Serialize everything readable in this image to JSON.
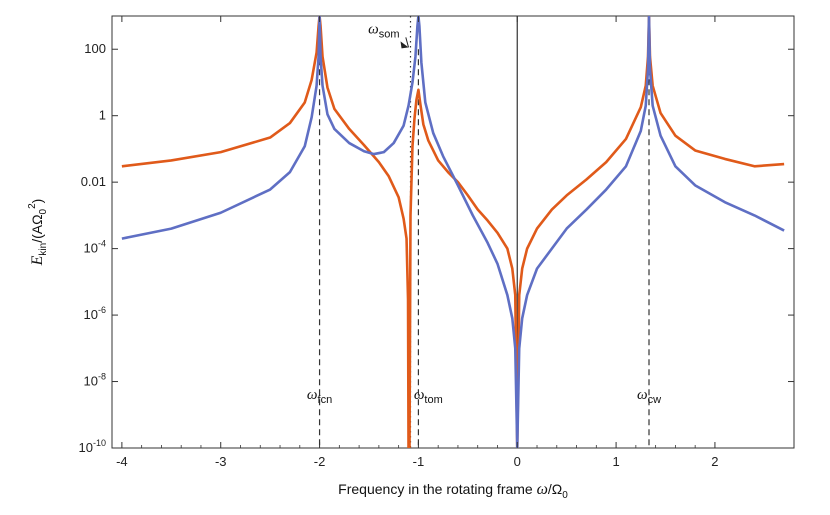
{
  "chart_data": {
    "type": "line",
    "xlabel_parts": [
      "Frequency in the rotating frame ",
      "ω",
      "/Ω",
      "0"
    ],
    "ylabel_parts": [
      "E",
      "kin",
      "/(AΩ",
      "0",
      "2",
      ")"
    ],
    "xlim": [
      -4.1,
      2.8
    ],
    "ylim": [
      1e-10,
      1000
    ],
    "y_scale": "log",
    "x_ticks": [
      -4,
      -3,
      -2,
      -1,
      0,
      1,
      2
    ],
    "x_tick_labels": [
      "-4",
      "-3",
      "-2",
      "-1",
      "0",
      "1",
      "2"
    ],
    "y_ticks": [
      {
        "value": 100,
        "base": "100",
        "exp": ""
      },
      {
        "value": 1,
        "base": "1",
        "exp": ""
      },
      {
        "value": 0.01,
        "base": "0.01",
        "exp": ""
      },
      {
        "value": 0.0001,
        "base": "10",
        "exp": "-4"
      },
      {
        "value": 1e-06,
        "base": "10",
        "exp": "-6"
      },
      {
        "value": 1e-08,
        "base": "10",
        "exp": "-8"
      },
      {
        "value": 1e-10,
        "base": "10",
        "exp": "-10"
      }
    ],
    "colors": {
      "orange": "#e05a1a",
      "blue": "#5f6fc4",
      "black": "#222222"
    },
    "vlines": [
      {
        "x": -2.0,
        "style": "dashed"
      },
      {
        "x": -1.0,
        "style": "dashed"
      },
      {
        "x": 1.333,
        "style": "dashed"
      },
      {
        "x": -1.08,
        "style": "dotted"
      },
      {
        "x": 0.0,
        "style": "solid"
      }
    ],
    "annotations": [
      {
        "name": "omega-fcn",
        "symbol": "ω",
        "sub": "fcn",
        "x": -2.0,
        "y": 3e-09
      },
      {
        "name": "omega-tom",
        "symbol": "ω",
        "sub": "tom",
        "x": -0.9,
        "y": 3e-09
      },
      {
        "name": "omega-cw",
        "symbol": "ω",
        "sub": "cw",
        "x": 1.333,
        "y": 3e-09
      },
      {
        "name": "omega-som",
        "symbol": "ω",
        "sub": "som",
        "x": -1.35,
        "y": 300
      }
    ],
    "series": [
      {
        "key": "orange",
        "color": "#e05a1a",
        "x": [
          -4.0,
          -3.5,
          -3.0,
          -2.5,
          -2.3,
          -2.15,
          -2.08,
          -2.03,
          -2.01,
          -2.0,
          -1.99,
          -1.97,
          -1.92,
          -1.85,
          -1.7,
          -1.55,
          -1.4,
          -1.3,
          -1.2,
          -1.15,
          -1.12,
          -1.105,
          -1.1,
          -1.09,
          -1.08,
          -1.06,
          -1.04,
          -1.02,
          -1.0,
          -0.98,
          -0.95,
          -0.9,
          -0.8,
          -0.7,
          -0.6,
          -0.5,
          -0.4,
          -0.3,
          -0.2,
          -0.1,
          -0.05,
          -0.02,
          0.0,
          0.02,
          0.05,
          0.1,
          0.2,
          0.35,
          0.5,
          0.7,
          0.9,
          1.1,
          1.25,
          1.3,
          1.323,
          1.333,
          1.343,
          1.37,
          1.45,
          1.6,
          1.8,
          2.1,
          2.4,
          2.7
        ],
        "y": [
          0.03,
          0.045,
          0.08,
          0.22,
          0.6,
          2.5,
          12,
          80,
          500,
          1000,
          500,
          60,
          7,
          1.6,
          0.4,
          0.13,
          0.04,
          0.015,
          0.0035,
          0.0008,
          0.0002,
          3e-06,
          1e-10,
          1e-10,
          0.001,
          0.12,
          0.8,
          3,
          6,
          2.2,
          0.55,
          0.18,
          0.045,
          0.02,
          0.01,
          0.004,
          0.0015,
          0.0007,
          0.0003,
          0.0001,
          2.5e-05,
          4e-06,
          1e-10,
          4e-06,
          2.5e-05,
          0.0001,
          0.0004,
          0.0015,
          0.004,
          0.012,
          0.04,
          0.2,
          1.8,
          8,
          60,
          1000,
          60,
          8,
          1.2,
          0.25,
          0.09,
          0.05,
          0.03,
          0.035
        ]
      },
      {
        "key": "blue",
        "color": "#5f6fc4",
        "x": [
          -4.0,
          -3.5,
          -3.0,
          -2.5,
          -2.3,
          -2.15,
          -2.08,
          -2.03,
          -2.01,
          -2.0,
          -1.99,
          -1.97,
          -1.92,
          -1.85,
          -1.7,
          -1.55,
          -1.45,
          -1.35,
          -1.25,
          -1.15,
          -1.1,
          -1.06,
          -1.03,
          -1.01,
          -1.0,
          -0.99,
          -0.97,
          -0.93,
          -0.85,
          -0.75,
          -0.6,
          -0.45,
          -0.3,
          -0.2,
          -0.1,
          -0.05,
          -0.02,
          0.0,
          0.02,
          0.05,
          0.1,
          0.2,
          0.35,
          0.5,
          0.7,
          0.9,
          1.1,
          1.25,
          1.3,
          1.323,
          1.333,
          1.343,
          1.37,
          1.45,
          1.6,
          1.8,
          2.1,
          2.4,
          2.7
        ],
        "y": [
          0.0002,
          0.0004,
          0.0012,
          0.006,
          0.02,
          0.12,
          0.9,
          8,
          60,
          1000,
          60,
          8,
          1.1,
          0.4,
          0.15,
          0.085,
          0.07,
          0.08,
          0.15,
          0.5,
          2,
          10,
          60,
          500,
          1000,
          500,
          40,
          2.5,
          0.3,
          0.06,
          0.008,
          0.001,
          0.00015,
          3.5e-05,
          4e-06,
          8e-07,
          1e-07,
          1e-10,
          1e-07,
          8e-07,
          4e-06,
          2.5e-05,
          0.0001,
          0.0004,
          0.0015,
          0.006,
          0.03,
          0.35,
          2,
          25,
          1000,
          25,
          2,
          0.25,
          0.03,
          0.008,
          0.0025,
          0.001,
          0.00035
        ]
      }
    ]
  }
}
